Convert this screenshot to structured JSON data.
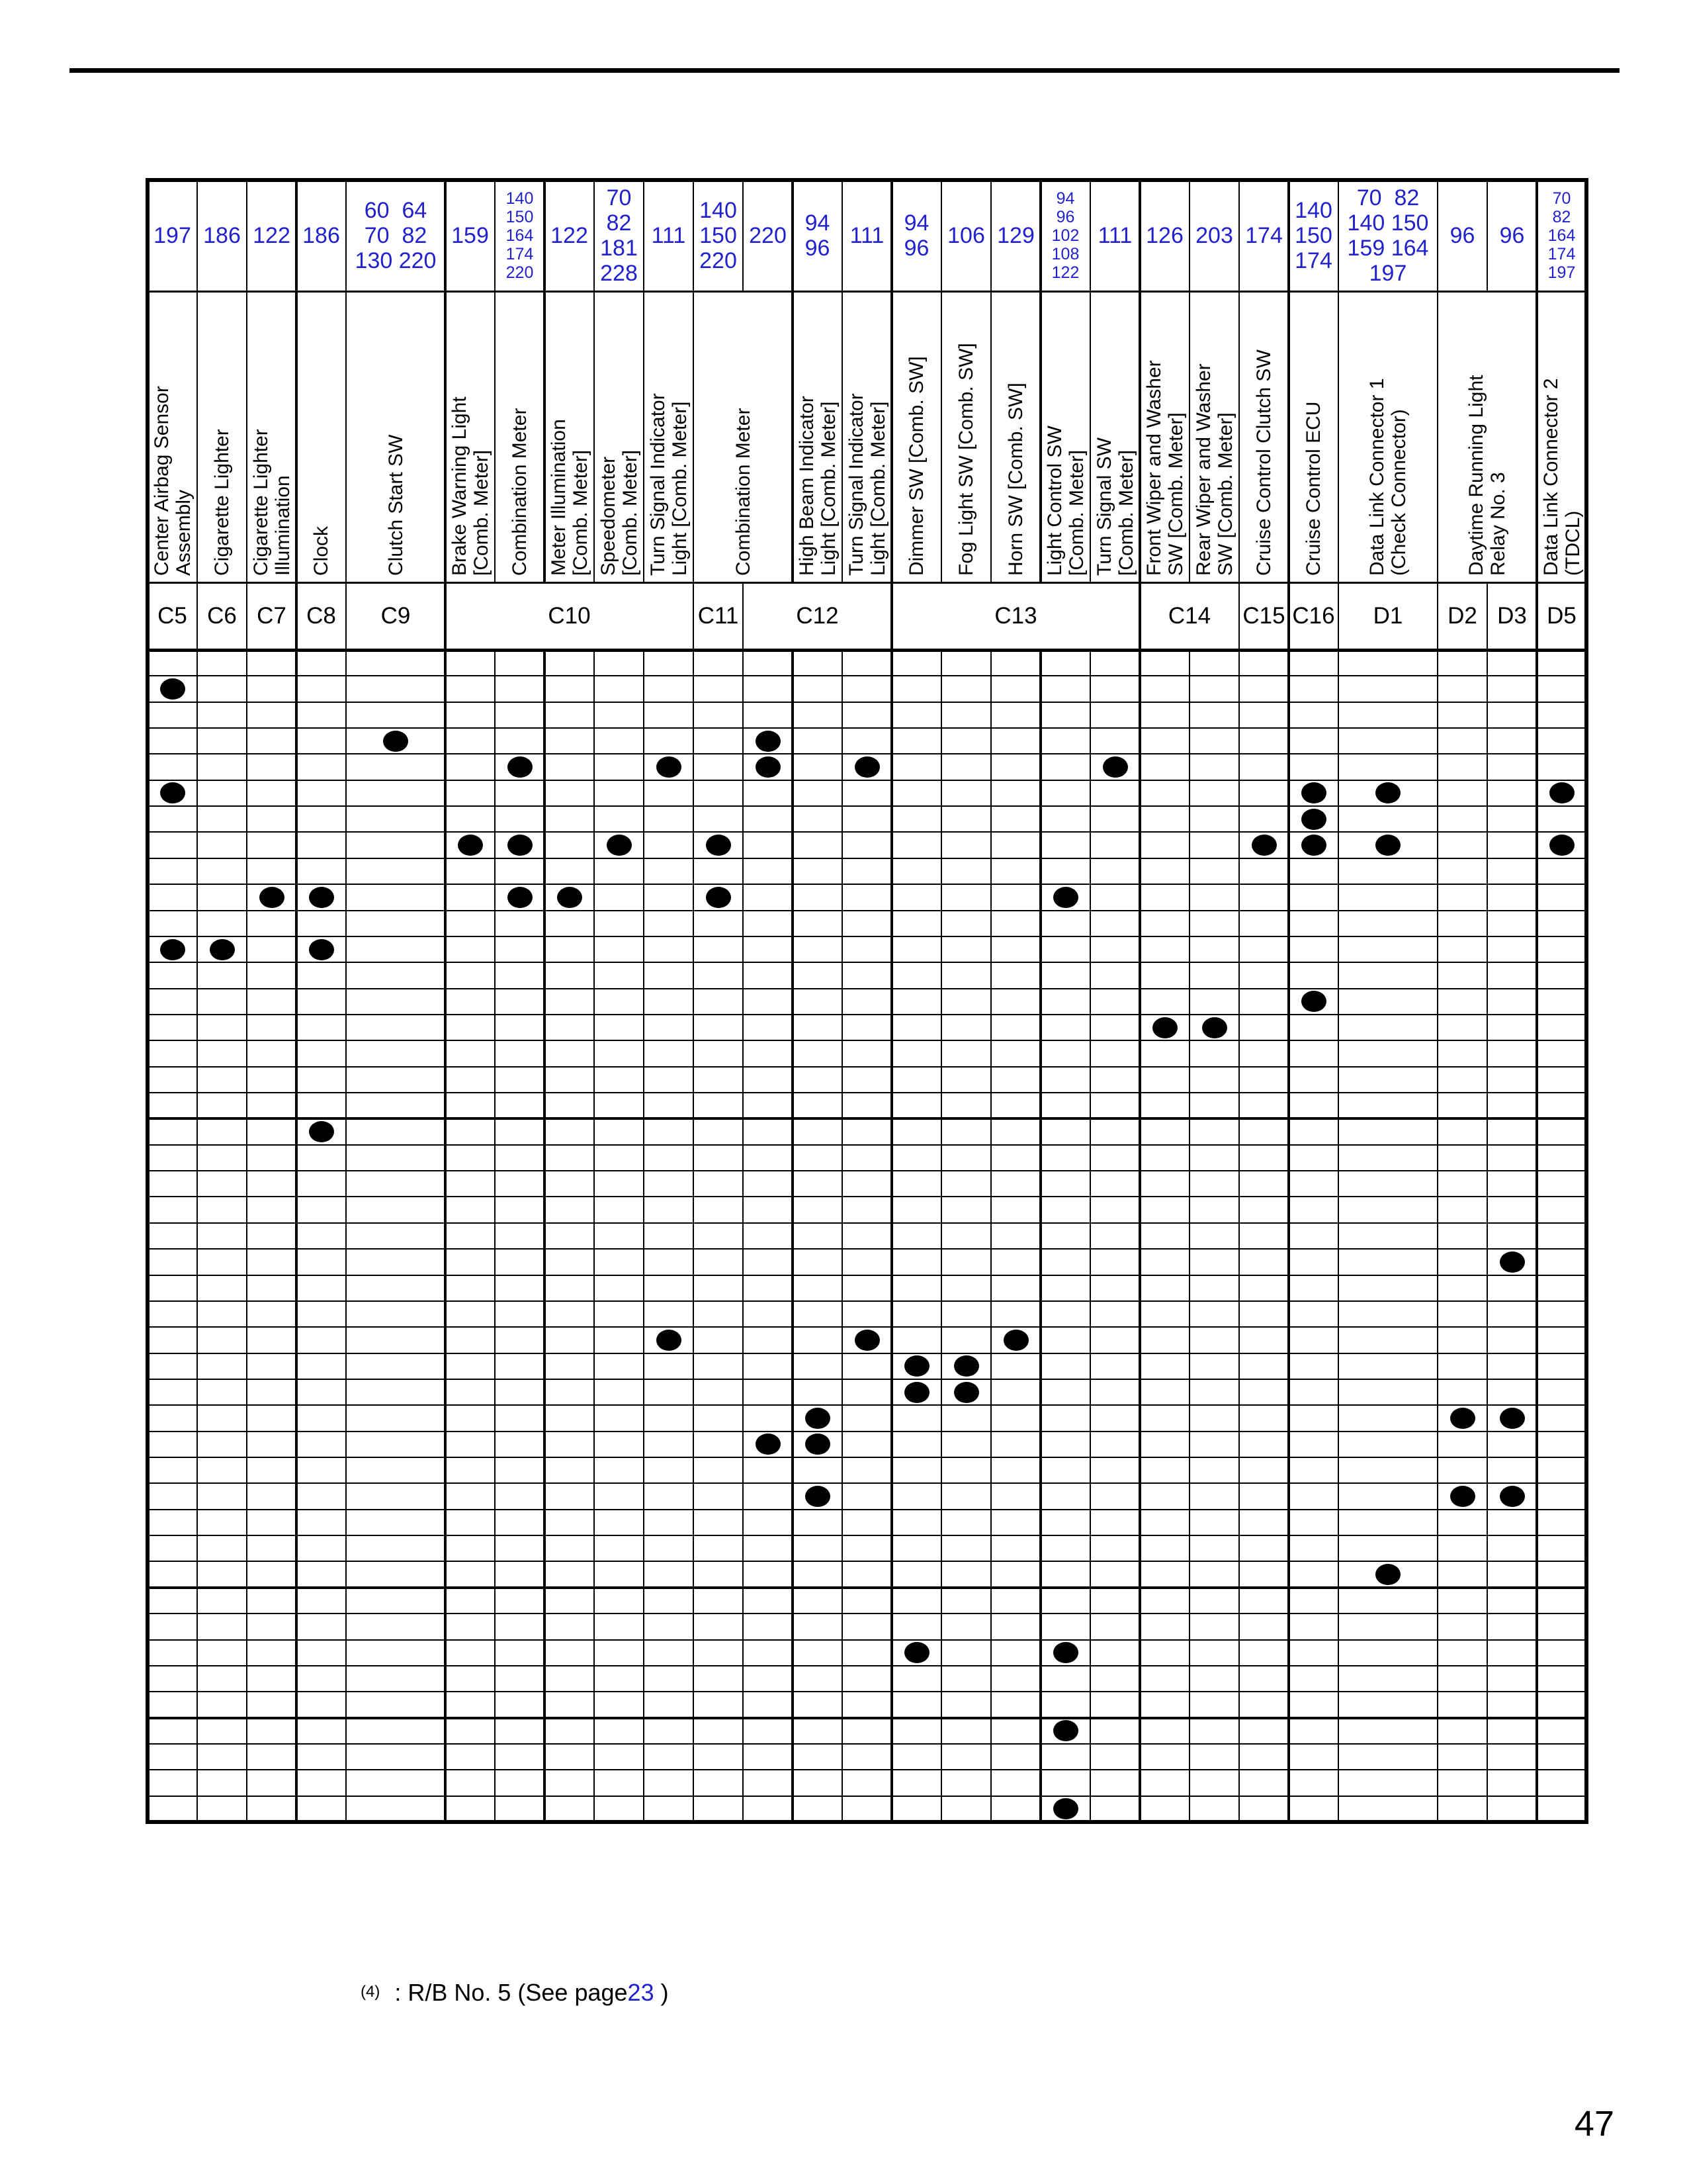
{
  "colors": {
    "accent_blue": "#2222cc",
    "ink": "#000000"
  },
  "footnote": {
    "marker": "(4)",
    "text": ": R/B No. 5 (See page",
    "page_ref": "23",
    "close": " )"
  },
  "page": {
    "page_number": "47"
  },
  "table": {
    "rows": 45,
    "thick_cols_after": [
      3,
      5,
      7,
      12,
      14,
      17,
      19,
      22,
      26
    ],
    "thick_rows_after": [
      18,
      36,
      41
    ],
    "label_interior_boundaries": [
      11,
      25
    ],
    "columns": [
      {
        "id": "center-airbag-sensor-assembly",
        "span": 1,
        "pages": [
          "197"
        ],
        "small": false
      },
      {
        "id": "cigarette-lighter",
        "span": 1,
        "pages": [
          "186"
        ],
        "small": false
      },
      {
        "id": "cigarette-lighter-illumination",
        "span": 1,
        "pages": [
          "122"
        ],
        "small": false
      },
      {
        "id": "clock",
        "span": 1,
        "pages": [
          "186"
        ],
        "small": false
      },
      {
        "id": "clutch-start-sw",
        "span": 2,
        "pages": [
          "60  64",
          "70  82",
          "130 220"
        ],
        "small": false
      },
      {
        "id": "brake-warning-light",
        "span": 1,
        "pages": [
          "159"
        ],
        "small": false
      },
      {
        "id": "combination-meter-c10",
        "span": 1,
        "pages": [
          "140",
          "150",
          "164",
          "174",
          "220"
        ],
        "small": true
      },
      {
        "id": "meter-illumination",
        "span": 1,
        "pages": [
          "122"
        ],
        "small": false
      },
      {
        "id": "speedometer",
        "span": 1,
        "pages": [
          "70",
          "82",
          "181",
          "228"
        ],
        "small": false
      },
      {
        "id": "turn-signal-indicator-light-c10",
        "span": 1,
        "pages": [
          "111"
        ],
        "small": false
      },
      {
        "id": "combination-meter-c11",
        "span": 1,
        "pages": [
          "140",
          "150",
          "220"
        ],
        "small": false
      },
      {
        "id": "combination-meter-c12",
        "span": 1,
        "pages": [
          "220"
        ],
        "small": false
      },
      {
        "id": "high-beam-indicator-light",
        "span": 1,
        "pages": [
          "94",
          "96"
        ],
        "small": false
      },
      {
        "id": "turn-signal-indicator-light-c12",
        "span": 1,
        "pages": [
          "111"
        ],
        "small": false
      },
      {
        "id": "dimmer-sw",
        "span": 1,
        "pages": [
          "94",
          "96"
        ],
        "small": false
      },
      {
        "id": "fog-light-sw",
        "span": 1,
        "pages": [
          "106"
        ],
        "small": false
      },
      {
        "id": "horn-sw",
        "span": 1,
        "pages": [
          "129"
        ],
        "small": false
      },
      {
        "id": "light-control-sw",
        "span": 1,
        "pages": [
          "94",
          "96",
          "102",
          "108",
          "122"
        ],
        "small": true
      },
      {
        "id": "turn-signal-sw",
        "span": 1,
        "pages": [
          "111"
        ],
        "small": false
      },
      {
        "id": "front-wiper-washer-sw",
        "span": 1,
        "pages": [
          "126"
        ],
        "small": false
      },
      {
        "id": "rear-wiper-washer-sw",
        "span": 1,
        "pages": [
          "203"
        ],
        "small": false
      },
      {
        "id": "cruise-control-clutch-sw",
        "span": 1,
        "pages": [
          "174"
        ],
        "small": false
      },
      {
        "id": "cruise-control-ecu",
        "span": 1,
        "pages": [
          "140",
          "150",
          "174"
        ],
        "small": false
      },
      {
        "id": "data-link-connector-1",
        "span": 2,
        "pages": [
          "70  82",
          "140 150",
          "159 164",
          "197"
        ],
        "small": false
      },
      {
        "id": "daytime-running-light-relay-d2",
        "span": 1,
        "pages": [
          "96"
        ],
        "small": false
      },
      {
        "id": "daytime-running-light-relay-d3",
        "span": 1,
        "pages": [
          "96"
        ],
        "small": false
      },
      {
        "id": "data-link-connector-2",
        "span": 1,
        "pages": [
          "70",
          "82",
          "164",
          "174",
          "197"
        ],
        "small": true
      }
    ],
    "labels": [
      {
        "from": 1,
        "span": 1,
        "text": "Center Airbag Sensor\nAssembly"
      },
      {
        "from": 2,
        "span": 1,
        "text": "Cigarette Lighter"
      },
      {
        "from": 3,
        "span": 1,
        "text": "Cigarette Lighter\nIllumination"
      },
      {
        "from": 4,
        "span": 1,
        "text": "Clock"
      },
      {
        "from": 5,
        "span": 1,
        "text": "Clutch Start SW"
      },
      {
        "from": 6,
        "span": 1,
        "text": "Brake Warning Light\n[Comb. Meter]"
      },
      {
        "from": 7,
        "span": 1,
        "text": "Combination Meter"
      },
      {
        "from": 8,
        "span": 1,
        "text": "Meter Illumination\n[Comb. Meter]"
      },
      {
        "from": 9,
        "span": 1,
        "text": "Speedometer\n[Comb. Meter]"
      },
      {
        "from": 10,
        "span": 1,
        "text": "Turn Signal Indicator\nLight [Comb. Meter]"
      },
      {
        "from": 11,
        "span": 2,
        "text": "Combination Meter"
      },
      {
        "from": 13,
        "span": 1,
        "text": "High Beam Indicator\nLight [Comb. Meter]"
      },
      {
        "from": 14,
        "span": 1,
        "text": "Turn Signal Indicator\nLight [Comb. Meter]"
      },
      {
        "from": 15,
        "span": 1,
        "text": "Dimmer SW [Comb. SW]"
      },
      {
        "from": 16,
        "span": 1,
        "text": "Fog Light SW [Comb. SW]"
      },
      {
        "from": 17,
        "span": 1,
        "text": "Horn SW [Comb. SW]"
      },
      {
        "from": 18,
        "span": 1,
        "text": "Light Control SW\n[Comb. Meter]"
      },
      {
        "from": 19,
        "span": 1,
        "text": "Turn Signal SW\n[Comb. Meter]"
      },
      {
        "from": 20,
        "span": 1,
        "text": "Front Wiper and Washer\nSW [Comb. Meter]"
      },
      {
        "from": 21,
        "span": 1,
        "text": "Rear Wiper and Washer\nSW [Comb. Meter]"
      },
      {
        "from": 22,
        "span": 1,
        "text": "Cruise Control Clutch SW"
      },
      {
        "from": 23,
        "span": 1,
        "text": "Cruise Control ECU"
      },
      {
        "from": 24,
        "span": 1,
        "text": "Data Link Connector 1\n(Check Connector)"
      },
      {
        "from": 25,
        "span": 2,
        "text": "Daytime Running Light\nRelay No. 3"
      },
      {
        "from": 27,
        "span": 1,
        "text": "Data Link Connector 2\n(TDCL)"
      }
    ],
    "codes": [
      {
        "code": "C5",
        "from": 1,
        "span": 1
      },
      {
        "code": "C6",
        "from": 2,
        "span": 1
      },
      {
        "code": "C7",
        "from": 3,
        "span": 1
      },
      {
        "code": "C8",
        "from": 4,
        "span": 1
      },
      {
        "code": "C9",
        "from": 5,
        "span": 1
      },
      {
        "code": "C10",
        "from": 6,
        "span": 5
      },
      {
        "code": "C11",
        "from": 11,
        "span": 1
      },
      {
        "code": "C12",
        "from": 12,
        "span": 3
      },
      {
        "code": "C13",
        "from": 15,
        "span": 5
      },
      {
        "code": "C14",
        "from": 20,
        "span": 2
      },
      {
        "code": "C15",
        "from": 22,
        "span": 1
      },
      {
        "code": "C16",
        "from": 23,
        "span": 1
      },
      {
        "code": "D1",
        "from": 24,
        "span": 1
      },
      {
        "code": "D2",
        "from": 25,
        "span": 1
      },
      {
        "code": "D3",
        "from": 26,
        "span": 1
      },
      {
        "code": "D5",
        "from": 27,
        "span": 1
      }
    ],
    "dots": [
      {
        "r": 2,
        "c": 1
      },
      {
        "r": 4,
        "c": 5
      },
      {
        "r": 4,
        "c": 12
      },
      {
        "r": 5,
        "c": 7
      },
      {
        "r": 5,
        "c": 10
      },
      {
        "r": 5,
        "c": 12
      },
      {
        "r": 5,
        "c": 14
      },
      {
        "r": 5,
        "c": 19
      },
      {
        "r": 6,
        "c": 1
      },
      {
        "r": 6,
        "c": 23
      },
      {
        "r": 6,
        "c": 24
      },
      {
        "r": 6,
        "c": 27
      },
      {
        "r": 7,
        "c": 23
      },
      {
        "r": 8,
        "c": 6
      },
      {
        "r": 8,
        "c": 7
      },
      {
        "r": 8,
        "c": 9
      },
      {
        "r": 8,
        "c": 11
      },
      {
        "r": 8,
        "c": 22
      },
      {
        "r": 8,
        "c": 23
      },
      {
        "r": 8,
        "c": 24
      },
      {
        "r": 8,
        "c": 27
      },
      {
        "r": 10,
        "c": 3
      },
      {
        "r": 10,
        "c": 4
      },
      {
        "r": 10,
        "c": 7
      },
      {
        "r": 10,
        "c": 8
      },
      {
        "r": 10,
        "c": 11
      },
      {
        "r": 10,
        "c": 18
      },
      {
        "r": 12,
        "c": 1
      },
      {
        "r": 12,
        "c": 2
      },
      {
        "r": 12,
        "c": 4
      },
      {
        "r": 14,
        "c": 23
      },
      {
        "r": 15,
        "c": 20
      },
      {
        "r": 15,
        "c": 21
      },
      {
        "r": 19,
        "c": 4
      },
      {
        "r": 24,
        "c": 26
      },
      {
        "r": 27,
        "c": 10
      },
      {
        "r": 27,
        "c": 14
      },
      {
        "r": 27,
        "c": 17
      },
      {
        "r": 28,
        "c": 15
      },
      {
        "r": 28,
        "c": 16
      },
      {
        "r": 29,
        "c": 15
      },
      {
        "r": 29,
        "c": 16
      },
      {
        "r": 30,
        "c": 13
      },
      {
        "r": 30,
        "c": 25
      },
      {
        "r": 30,
        "c": 26
      },
      {
        "r": 31,
        "c": 12
      },
      {
        "r": 31,
        "c": 13
      },
      {
        "r": 33,
        "c": 13
      },
      {
        "r": 33,
        "c": 25
      },
      {
        "r": 33,
        "c": 26
      },
      {
        "r": 36,
        "c": 24
      },
      {
        "r": 39,
        "c": 15
      },
      {
        "r": 39,
        "c": 18
      },
      {
        "r": 42,
        "c": 18
      },
      {
        "r": 45,
        "c": 18
      }
    ]
  }
}
